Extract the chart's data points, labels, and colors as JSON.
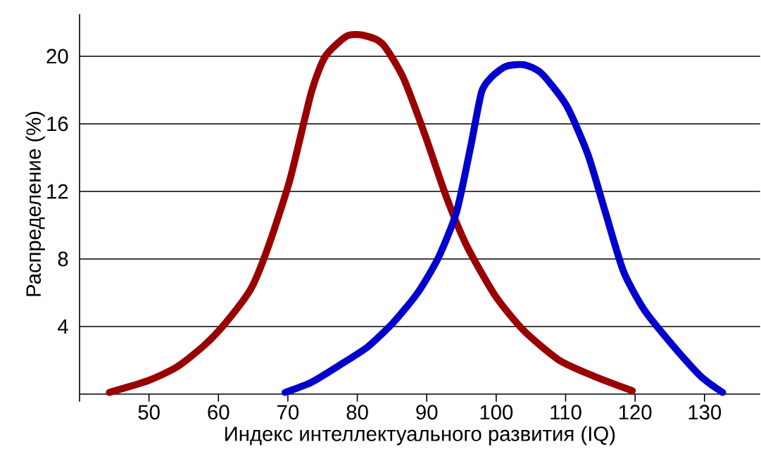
{
  "chart_data": {
    "type": "line",
    "xlabel": "Индекс интеллектуального развития (IQ)",
    "ylabel": "Распределение (%)",
    "xlim": [
      40,
      138
    ],
    "ylim": [
      0,
      22.5
    ],
    "xticks": [
      {
        "value": 40,
        "label": null
      },
      50,
      60,
      70,
      80,
      90,
      100,
      110,
      120,
      130
    ],
    "yticks": [
      4,
      8,
      12,
      16,
      20
    ],
    "grid": "y",
    "marker": "none",
    "line_style": "solid",
    "series": [
      {
        "color": "#990000",
        "x": [
          44.3,
          49.9,
          54,
          58,
          61.1,
          64.7,
          67.2,
          70.3,
          73.4,
          75.4,
          78.5,
          80.8,
          83.6,
          86.6,
          89.7,
          92.8,
          95.8,
          99.9,
          104,
          109.1,
          114.2,
          119.6
        ],
        "values": [
          0.1,
          0.8,
          1.6,
          2.9,
          4.25,
          6.25,
          8.75,
          12.7,
          17.9,
          20,
          21.2,
          21.25,
          20.75,
          18.75,
          15.4,
          11.7,
          8.75,
          5.8,
          3.75,
          2,
          1.04,
          0.2
        ]
      },
      {
        "color": "#0000cc",
        "x": [
          69.6,
          73.4,
          77.4,
          81.5,
          85.1,
          88.7,
          91.7,
          94.3,
          96.3,
          97.9,
          99.4,
          101.4,
          104,
          106.5,
          110.1,
          113.2,
          115.7,
          118.3,
          121.3,
          125.4,
          129.5,
          132.6
        ],
        "values": [
          0.1,
          0.7,
          1.7,
          2.8,
          4.2,
          6,
          8.1,
          10.8,
          14.6,
          17.9,
          18.8,
          19.4,
          19.5,
          19,
          17.1,
          14.2,
          10.8,
          7.3,
          5,
          2.9,
          1.04,
          0.1
        ]
      }
    ]
  }
}
